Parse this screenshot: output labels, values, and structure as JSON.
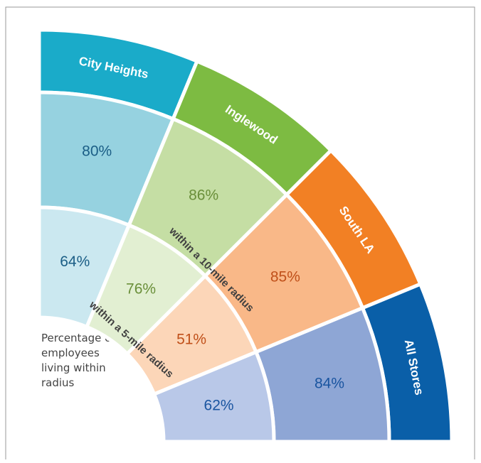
{
  "chart_data": {
    "type": "radial",
    "categories": [
      "City Heights",
      "Inglewood",
      "South LA",
      "All Stores"
    ],
    "category_colors": [
      "#1aabc9",
      "#7dbb42",
      "#f28024",
      "#0a5fa8"
    ],
    "text_colors": [
      "#1b5e86",
      "#6a8f3a",
      "#c0501a",
      "#1a55a0"
    ],
    "series": [
      {
        "name": "within a 10-mile radius",
        "colors": [
          "#96d2e0",
          "#c5dea4",
          "#f9b888",
          "#8ea6d5"
        ],
        "values": [
          80,
          86,
          85,
          84
        ],
        "value_labels": [
          "80%",
          "86%",
          "85%",
          "84%"
        ]
      },
      {
        "name": "within a 5-mile radius",
        "colors": [
          "#cbe8f0",
          "#e2efd2",
          "#fcd6b8",
          "#b9c8e8"
        ],
        "values": [
          64,
          76,
          51,
          62
        ],
        "value_labels": [
          "64%",
          "76%",
          "51%",
          "62%"
        ]
      }
    ],
    "note": "Percentage of employees living within radius"
  }
}
